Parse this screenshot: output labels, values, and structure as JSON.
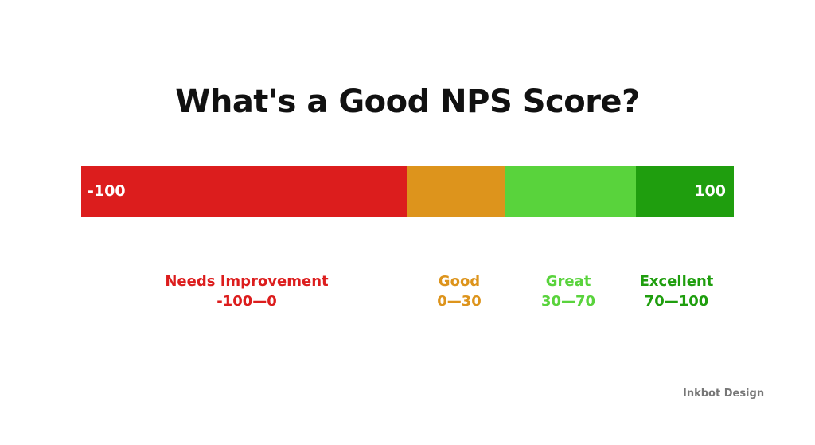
{
  "title": "What's a Good NPS Score?",
  "scale": {
    "min_label": "-100",
    "max_label": "100",
    "min": -100,
    "max": 100
  },
  "categories": [
    {
      "name": "Needs Improvement",
      "range_label": "-100—0",
      "from": -100,
      "to": 0,
      "bar_color": "#dc1d1d",
      "text_color": "#dc1d1d",
      "slug": "needs-improvement"
    },
    {
      "name": "Good",
      "range_label": "0—30",
      "from": 0,
      "to": 30,
      "bar_color": "#dd941c",
      "text_color": "#dd941c",
      "slug": "good"
    },
    {
      "name": "Great",
      "range_label": "30—70",
      "from": 30,
      "to": 70,
      "bar_color": "#59d33c",
      "text_color": "#59d33c",
      "slug": "great"
    },
    {
      "name": "Excellent",
      "range_label": "70—100",
      "from": 70,
      "to": 100,
      "bar_color": "#1f9e0e",
      "text_color": "#1f9e0e",
      "slug": "excellent"
    }
  ],
  "brand": "Inkbot Design"
}
